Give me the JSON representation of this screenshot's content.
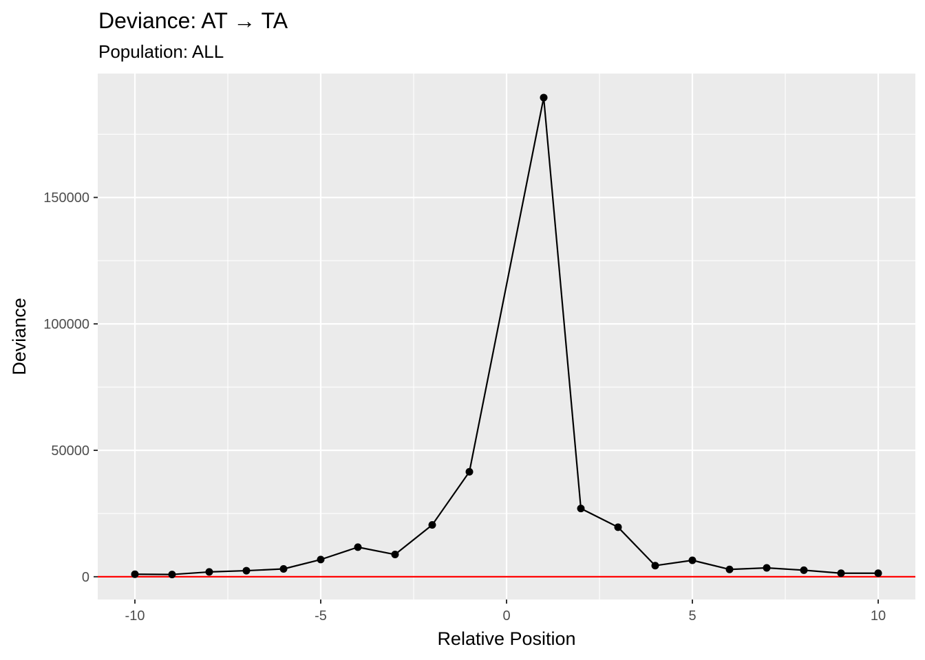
{
  "chart_data": {
    "type": "line",
    "title": "Deviance: AT → TA",
    "subtitle": "Population: ALL",
    "xlabel": "Relative Position",
    "ylabel": "Deviance",
    "xlim": [
      -11,
      11
    ],
    "ylim": [
      -9000,
      199000
    ],
    "x_major_ticks": [
      -10,
      -5,
      0,
      5,
      10
    ],
    "x_tick_labels": [
      "-10",
      "-5",
      "0",
      "5",
      "10"
    ],
    "x_minor_ticks": [
      -7.5,
      -2.5,
      2.5,
      7.5
    ],
    "y_major_ticks": [
      0,
      50000,
      100000,
      150000
    ],
    "y_tick_labels": [
      "0",
      "50000",
      "100000",
      "150000"
    ],
    "y_minor_ticks": [
      25000,
      75000,
      125000,
      175000
    ],
    "grid": true,
    "reference_line": {
      "y": 0,
      "color": "#ff0000"
    },
    "colors": {
      "panel": "#ebebeb",
      "grid": "#ffffff",
      "series": "#000000",
      "tick_text": "#4d4d4d"
    },
    "series": [
      {
        "x": [
          -10,
          -9,
          -8,
          -7,
          -6,
          -5,
          -4,
          -3,
          -2,
          -1,
          1,
          2,
          3,
          4,
          5,
          6,
          7,
          8,
          9,
          10
        ],
        "values": [
          1000,
          900,
          1900,
          2400,
          3100,
          6800,
          11700,
          8800,
          20500,
          41500,
          189500,
          27000,
          19600,
          4400,
          6500,
          2900,
          3500,
          2600,
          1400,
          1400
        ]
      }
    ]
  }
}
